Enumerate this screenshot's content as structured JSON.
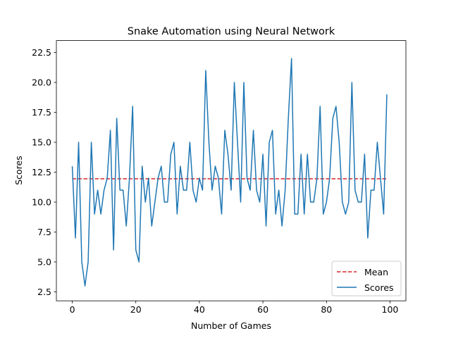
{
  "chart_data": {
    "type": "line",
    "title": "Snake Automation using Neural Network",
    "xlabel": "Number of Games",
    "ylabel": "Scores",
    "xlim": [
      -5,
      105
    ],
    "ylim": [
      1.75,
      23.5
    ],
    "x_ticks": [
      0,
      20,
      40,
      60,
      80,
      100
    ],
    "x_tick_labels": [
      "0",
      "20",
      "40",
      "60",
      "80",
      "100"
    ],
    "y_ticks": [
      2.5,
      5,
      7.5,
      10,
      12.5,
      15,
      17.5,
      20,
      22.5
    ],
    "y_tick_labels": [
      "2.5",
      "5.0",
      "7.5",
      "10.0",
      "12.5",
      "15.0",
      "17.5",
      "20.0",
      "22.5"
    ],
    "grid": false,
    "legend_position": "lower-right",
    "series": [
      {
        "name": "Mean",
        "style": "dashed",
        "color": "#d62728",
        "x": [
          0,
          99
        ],
        "y": [
          11.95,
          11.95
        ]
      },
      {
        "name": "Scores",
        "style": "solid",
        "color": "#1f77b4",
        "x": [
          0,
          1,
          2,
          3,
          4,
          5,
          6,
          7,
          8,
          9,
          10,
          11,
          12,
          13,
          14,
          15,
          16,
          17,
          18,
          19,
          20,
          21,
          22,
          23,
          24,
          25,
          26,
          27,
          28,
          29,
          30,
          31,
          32,
          33,
          34,
          35,
          36,
          37,
          38,
          39,
          40,
          41,
          42,
          43,
          44,
          45,
          46,
          47,
          48,
          49,
          50,
          51,
          52,
          53,
          54,
          55,
          56,
          57,
          58,
          59,
          60,
          61,
          62,
          63,
          64,
          65,
          66,
          67,
          68,
          69,
          70,
          71,
          72,
          73,
          74,
          75,
          76,
          77,
          78,
          79,
          80,
          81,
          82,
          83,
          84,
          85,
          86,
          87,
          88,
          89,
          90,
          91,
          92,
          93,
          94,
          95,
          96,
          97,
          98,
          99
        ],
        "y": [
          13,
          7,
          15,
          5,
          3,
          5,
          15,
          9,
          11,
          9,
          11,
          12,
          16,
          6,
          17,
          11,
          11,
          8,
          12,
          18,
          6,
          5,
          13,
          10,
          12,
          8,
          10,
          12,
          13,
          10,
          10,
          14,
          15,
          9,
          13,
          11,
          11,
          15,
          11,
          10,
          12,
          11,
          21,
          15,
          11,
          13,
          12,
          9,
          16,
          14,
          11,
          20,
          15,
          10,
          20,
          12,
          11,
          16,
          11,
          10,
          14,
          8,
          15,
          16,
          9,
          11,
          8,
          11,
          17,
          22,
          9,
          9,
          14,
          9,
          14,
          10,
          10,
          12,
          18,
          9,
          10,
          12,
          17,
          18,
          15,
          10,
          9,
          10,
          20,
          11,
          10,
          10,
          14,
          7,
          11,
          11,
          15,
          12,
          9,
          19
        ]
      }
    ]
  }
}
